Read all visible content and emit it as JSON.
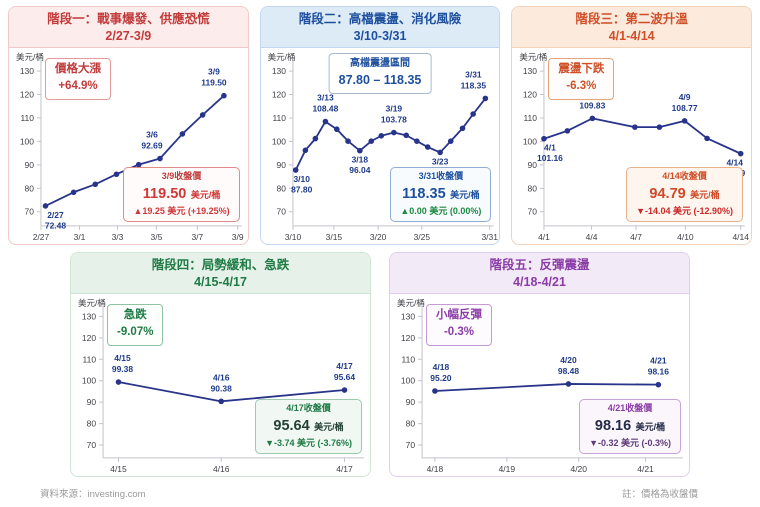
{
  "footer": {
    "source": "資料來源：investing.com",
    "note": "註：價格為收盤價"
  },
  "panels": [
    {
      "title": "階段一：戰事爆發、供應恐慌",
      "date_range": "2/27-3/9",
      "y_unit": "美元/桶",
      "callout": {
        "line1": "價格大漲",
        "line2": "+64.9%"
      },
      "info_box": {
        "title": "3/9收盤價",
        "value": "119.50",
        "unit": "美元/桶",
        "change": "▲19.25 美元 (+19.25%)"
      },
      "theme": {
        "accent": "#c23b3b",
        "header_bg": "#fdecec",
        "card_border": "#f0c9c9",
        "co_text": "#c23b3b",
        "co_border": "#e59a9a",
        "co_bg": "#fffdfd",
        "ib_border": "#e08a8a",
        "ib_bg": "#fffbfb",
        "ib_title": "#c23b3b",
        "ib_value": "#d03838",
        "ib_change": "#d03838",
        "line": "#28348a",
        "label": "#1e3a8a"
      }
    },
    {
      "title": "階段二：高檔震盪、消化風險",
      "date_range": "3/10-3/31",
      "y_unit": "美元/桶",
      "callout": {
        "line1": "高檔震盪區間",
        "line2": "87.80 – 118.35"
      },
      "info_box": {
        "title": "3/31收盤價",
        "value": "118.35",
        "unit": "美元/桶",
        "change": "▲0.00 美元 (0.00%)"
      },
      "theme": {
        "accent": "#1d4f9e",
        "header_bg": "#ddebf7",
        "card_border": "#c3d8ee",
        "co_text": "#1d4f9e",
        "co_border": "#a8b8cf",
        "co_bg": "#ffffff",
        "ib_border": "#90aed2",
        "ib_bg": "#f8fbfe",
        "ib_title": "#1d4f9e",
        "ib_value": "#1d4f9e",
        "ib_change": "#1d8a3f",
        "line": "#28348a",
        "label": "#1e3a8a"
      }
    },
    {
      "title": "階段三：第二波升溫",
      "date_range": "4/1-4/14",
      "y_unit": "美元/桶",
      "callout": {
        "line1": "震盪下跌",
        "line2": "-6.3%"
      },
      "info_box": {
        "title": "4/14收盤價",
        "value": "94.79",
        "unit": "美元/桶",
        "change": "▼-14.04 美元 (-12.90%)"
      },
      "theme": {
        "accent": "#cf4f28",
        "header_bg": "#fcebdd",
        "card_border": "#f2d3ba",
        "co_text": "#cf4f28",
        "co_border": "#e6a377",
        "co_bg": "#fffdfb",
        "ib_border": "#e7b18a",
        "ib_bg": "#fdf5ee",
        "ib_title": "#cf4f28",
        "ib_value": "#d04a28",
        "ib_change": "#cc2727",
        "line": "#28348a",
        "label": "#1e3a8a"
      }
    },
    {
      "title": "階段四：局勢緩和、急跌",
      "date_range": "4/15-4/17",
      "y_unit": "美元/桶",
      "callout": {
        "line1": "急跌",
        "line2": "-9.07%"
      },
      "info_box": {
        "title": "4/17收盤價",
        "value": "95.64",
        "unit": "美元/桶",
        "change": "▼-3.74 美元 (-3.76%)"
      },
      "theme": {
        "accent": "#1f7a46",
        "header_bg": "#e6f2e9",
        "card_border": "#cfe5d6",
        "co_text": "#1f7a46",
        "co_border": "#8fc2a2",
        "co_bg": "#fcfffc",
        "ib_border": "#9ccaad",
        "ib_bg": "#f1f8f3",
        "ib_title": "#1f7a46",
        "ib_value": "#244134",
        "ib_change": "#1d7a44",
        "line": "#28348a",
        "label": "#1e3a8a"
      }
    },
    {
      "title": "階段五：反彈震盪",
      "date_range": "4/18-4/21",
      "y_unit": "美元/桶",
      "callout": {
        "line1": "小幅反彈",
        "line2": "-0.3%"
      },
      "info_box": {
        "title": "4/21收盤價",
        "value": "98.16",
        "unit": "美元/桶",
        "change": "▼-0.32 美元 (-0.3%)"
      },
      "theme": {
        "accent": "#8a3da6",
        "header_bg": "#f3eaf8",
        "card_border": "#e1cdeb",
        "co_text": "#8a3da6",
        "co_border": "#c49bd6",
        "co_bg": "#fdfbfe",
        "ib_border": "#c7a3d8",
        "ib_bg": "#faf6fc",
        "ib_title": "#8a3da6",
        "ib_value": "#252b47",
        "ib_change": "#5d3b79",
        "line": "#28348a",
        "label": "#1e3a8a"
      }
    }
  ],
  "chart_data": [
    {
      "type": "line",
      "title": "階段一：戰事爆發、供應恐慌",
      "subtitle": "2/27-3/9",
      "ylabel": "美元/桶",
      "ylim": [
        64,
        133
      ],
      "y_ticks": [
        130,
        120,
        110,
        100,
        90,
        80,
        70
      ],
      "grid": false,
      "legend": "none",
      "x_ticks": [
        {
          "label": "2/27",
          "f": 0.0
        },
        {
          "label": "3/1",
          "f": 0.196
        },
        {
          "label": "3/3",
          "f": 0.389
        },
        {
          "label": "3/5",
          "f": 0.587
        },
        {
          "label": "3/7",
          "f": 0.795
        },
        {
          "label": "3/9",
          "f": 1.0
        }
      ],
      "points": [
        {
          "f": 0.023,
          "v": 72.48
        },
        {
          "f": 0.166,
          "v": 78.3
        },
        {
          "f": 0.276,
          "v": 81.7
        },
        {
          "f": 0.384,
          "v": 86.0
        },
        {
          "f": 0.497,
          "v": 90.1
        },
        {
          "f": 0.605,
          "v": 92.69
        },
        {
          "f": 0.719,
          "v": 103.2
        },
        {
          "f": 0.822,
          "v": 111.3
        },
        {
          "f": 0.93,
          "v": 119.5
        }
      ],
      "annotations": [
        {
          "i": 0,
          "date": "2/27",
          "value": "72.48",
          "pos": "below",
          "dx": 10
        },
        {
          "i": 5,
          "date": "3/6",
          "value": "92.69",
          "pos": "above",
          "dx": -8
        },
        {
          "i": 8,
          "date": "3/9",
          "value": "119.50",
          "pos": "above",
          "dx": -10
        }
      ]
    },
    {
      "type": "line",
      "title": "階段二：高檔震盪、消化風險",
      "subtitle": "3/10-3/31",
      "ylabel": "美元/桶",
      "ylim": [
        64,
        133
      ],
      "y_ticks": [
        130,
        120,
        110,
        100,
        90,
        80,
        70
      ],
      "grid": false,
      "legend": "none",
      "x_ticks": [
        {
          "label": "3/10",
          "f": 0.0
        },
        {
          "label": "3/15",
          "f": 0.208
        },
        {
          "label": "3/20",
          "f": 0.433
        },
        {
          "label": "3/25",
          "f": 0.655
        },
        {
          "label": "3/31",
          "f": 1.0
        }
      ],
      "points": [
        {
          "f": 0.014,
          "v": 87.8
        },
        {
          "f": 0.063,
          "v": 96.2
        },
        {
          "f": 0.114,
          "v": 101.2
        },
        {
          "f": 0.165,
          "v": 108.48
        },
        {
          "f": 0.223,
          "v": 105.2
        },
        {
          "f": 0.28,
          "v": 100.1
        },
        {
          "f": 0.34,
          "v": 96.04
        },
        {
          "f": 0.398,
          "v": 100.1
        },
        {
          "f": 0.449,
          "v": 102.4
        },
        {
          "f": 0.513,
          "v": 103.78
        },
        {
          "f": 0.576,
          "v": 102.6
        },
        {
          "f": 0.63,
          "v": 100.1
        },
        {
          "f": 0.685,
          "v": 97.6
        },
        {
          "f": 0.748,
          "v": 95.32
        },
        {
          "f": 0.802,
          "v": 100.1
        },
        {
          "f": 0.862,
          "v": 105.6
        },
        {
          "f": 0.916,
          "v": 111.7
        },
        {
          "f": 0.978,
          "v": 118.35
        }
      ],
      "annotations": [
        {
          "i": 0,
          "date": "3/10",
          "value": "87.80",
          "pos": "below",
          "dx": 6
        },
        {
          "i": 3,
          "date": "3/13",
          "value": "108.48",
          "pos": "above",
          "dx": 0
        },
        {
          "i": 6,
          "date": "3/18",
          "value": "96.04",
          "pos": "below",
          "dx": 0
        },
        {
          "i": 9,
          "date": "3/19",
          "value": "103.78",
          "pos": "above",
          "dx": 0
        },
        {
          "i": 13,
          "date": "3/23",
          "value": "95.32",
          "pos": "below",
          "dx": 0
        },
        {
          "i": 17,
          "date": "3/31",
          "value": "118.35",
          "pos": "above",
          "dx": -12
        }
      ]
    },
    {
      "type": "line",
      "title": "階段三：第二波升溫",
      "subtitle": "4/1-4/14",
      "ylabel": "美元/桶",
      "ylim": [
        64,
        133
      ],
      "y_ticks": [
        130,
        120,
        110,
        100,
        90,
        80,
        70
      ],
      "grid": false,
      "legend": "none",
      "x_ticks": [
        {
          "label": "4/1",
          "f": 0.0
        },
        {
          "label": "4/4",
          "f": 0.242
        },
        {
          "label": "4/7",
          "f": 0.468
        },
        {
          "label": "4/10",
          "f": 0.719
        },
        {
          "label": "4/14",
          "f": 1.0
        }
      ],
      "points": [
        {
          "f": 0.0,
          "v": 101.16
        },
        {
          "f": 0.119,
          "v": 104.5
        },
        {
          "f": 0.246,
          "v": 109.83
        },
        {
          "f": 0.462,
          "v": 106.1
        },
        {
          "f": 0.587,
          "v": 106.1
        },
        {
          "f": 0.715,
          "v": 108.77
        },
        {
          "f": 0.829,
          "v": 101.3
        },
        {
          "f": 1.0,
          "v": 94.79
        }
      ],
      "annotations": [
        {
          "i": 0,
          "date": "4/1",
          "value": "101.16",
          "pos": "below",
          "dx": 6
        },
        {
          "i": 2,
          "date": "4/4",
          "value": "109.83",
          "pos": "above",
          "dx": 0
        },
        {
          "i": 5,
          "date": "4/9",
          "value": "108.77",
          "pos": "above",
          "dx": 0
        },
        {
          "i": 7,
          "date": "4/14",
          "value": "94.79",
          "pos": "below",
          "dx": -6
        }
      ]
    },
    {
      "type": "line",
      "title": "階段四：局勢緩和、急跌",
      "subtitle": "4/15-4/17",
      "ylabel": "美元/桶",
      "ylim": [
        64,
        133
      ],
      "y_ticks": [
        130,
        120,
        110,
        100,
        90,
        80,
        70
      ],
      "grid": false,
      "legend": "none",
      "x_ticks": [
        {
          "label": "4/15",
          "f": 0.06
        },
        {
          "label": "4/16",
          "f": 0.46
        },
        {
          "label": "4/17",
          "f": 0.94
        }
      ],
      "points": [
        {
          "f": 0.06,
          "v": 99.38
        },
        {
          "f": 0.46,
          "v": 90.38
        },
        {
          "f": 0.94,
          "v": 95.64
        }
      ],
      "annotations": [
        {
          "i": 0,
          "date": "4/15",
          "value": "99.38",
          "pos": "above",
          "dx": 4
        },
        {
          "i": 1,
          "date": "4/16",
          "value": "90.38",
          "pos": "above",
          "dx": 0
        },
        {
          "i": 2,
          "date": "4/17",
          "value": "95.64",
          "pos": "above",
          "dx": 0
        }
      ]
    },
    {
      "type": "line",
      "title": "階段五：反彈震盪",
      "subtitle": "4/18-4/21",
      "ylabel": "美元/桶",
      "ylim": [
        64,
        133
      ],
      "y_ticks": [
        130,
        120,
        110,
        100,
        90,
        80,
        70
      ],
      "grid": false,
      "legend": "none",
      "x_ticks": [
        {
          "label": "4/18",
          "f": 0.05
        },
        {
          "label": "4/19",
          "f": 0.33
        },
        {
          "label": "4/20",
          "f": 0.61
        },
        {
          "label": "4/21",
          "f": 0.87
        }
      ],
      "points": [
        {
          "f": 0.05,
          "v": 95.2
        },
        {
          "f": 0.57,
          "v": 98.48
        },
        {
          "f": 0.92,
          "v": 98.16
        }
      ],
      "annotations": [
        {
          "i": 0,
          "date": "4/18",
          "value": "95.20",
          "pos": "above",
          "dx": 6
        },
        {
          "i": 1,
          "date": "4/20",
          "value": "98.48",
          "pos": "above",
          "dx": 0
        },
        {
          "i": 2,
          "date": "4/21",
          "value": "98.16",
          "pos": "above",
          "dx": 0
        }
      ]
    }
  ]
}
